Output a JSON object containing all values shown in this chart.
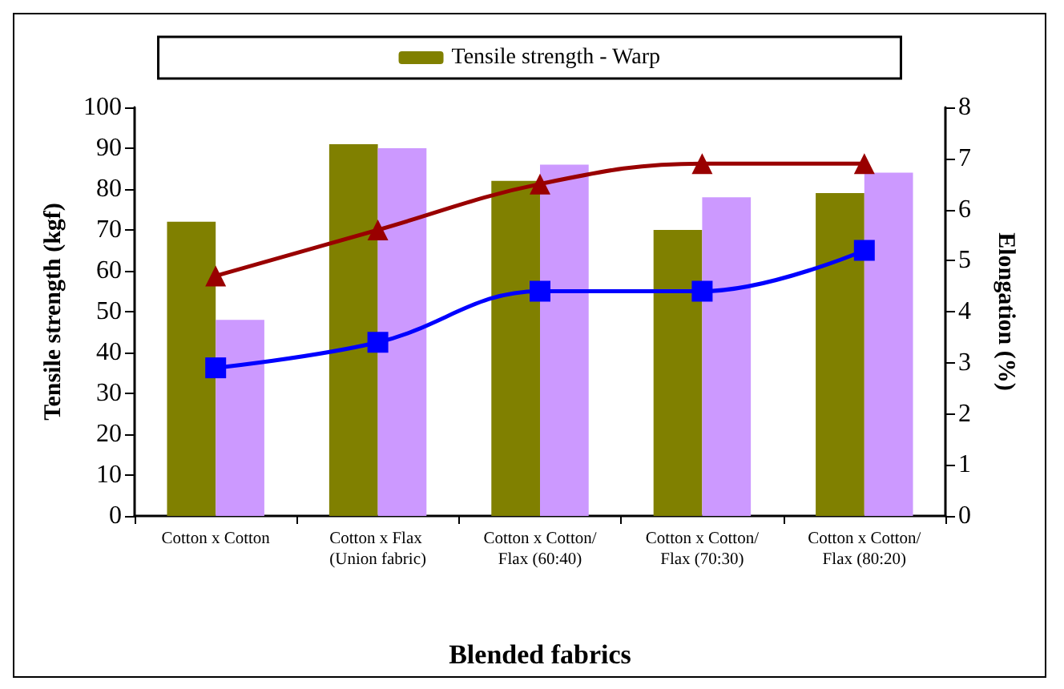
{
  "chart_data": {
    "type": "bar",
    "xlabel": "Blended fabrics",
    "ylabel": "Tensile strength (kgf)",
    "y2label": "Elongation (%)",
    "categories": [
      "Cotton x Cotton",
      "Cotton x Flax (Union fabric)",
      "Cotton x Cotton/Flax (60:40)",
      "Cotton x Cotton/Flax (70:30)",
      "Cotton x Cotton/Flax (80:20)"
    ],
    "series": [
      {
        "name": "Tensile strength - Warp",
        "color": "#808000",
        "values": [
          72,
          91,
          82,
          70,
          79
        ]
      },
      {
        "color": "#cc99ff",
        "values": [
          48,
          90,
          86,
          78,
          84
        ]
      },
      {
        "type": "line",
        "axis": "y2",
        "color": "#990000",
        "marker": "triangle",
        "values": [
          4.7,
          5.6,
          6.5,
          6.9,
          6.9
        ]
      },
      {
        "type": "line",
        "axis": "y2",
        "color": "#0000ff",
        "marker": "square",
        "values": [
          2.9,
          3.4,
          4.4,
          4.4,
          5.2
        ]
      }
    ],
    "ylim": [
      0,
      100
    ],
    "yticks": [
      0,
      10,
      20,
      30,
      40,
      50,
      60,
      70,
      80,
      90,
      100
    ],
    "y2lim": [
      0,
      8
    ],
    "y2ticks": [
      0,
      1,
      2,
      3,
      4,
      5,
      6,
      7,
      8
    ],
    "grid": false,
    "legend": "top",
    "line_style": "solid"
  }
}
